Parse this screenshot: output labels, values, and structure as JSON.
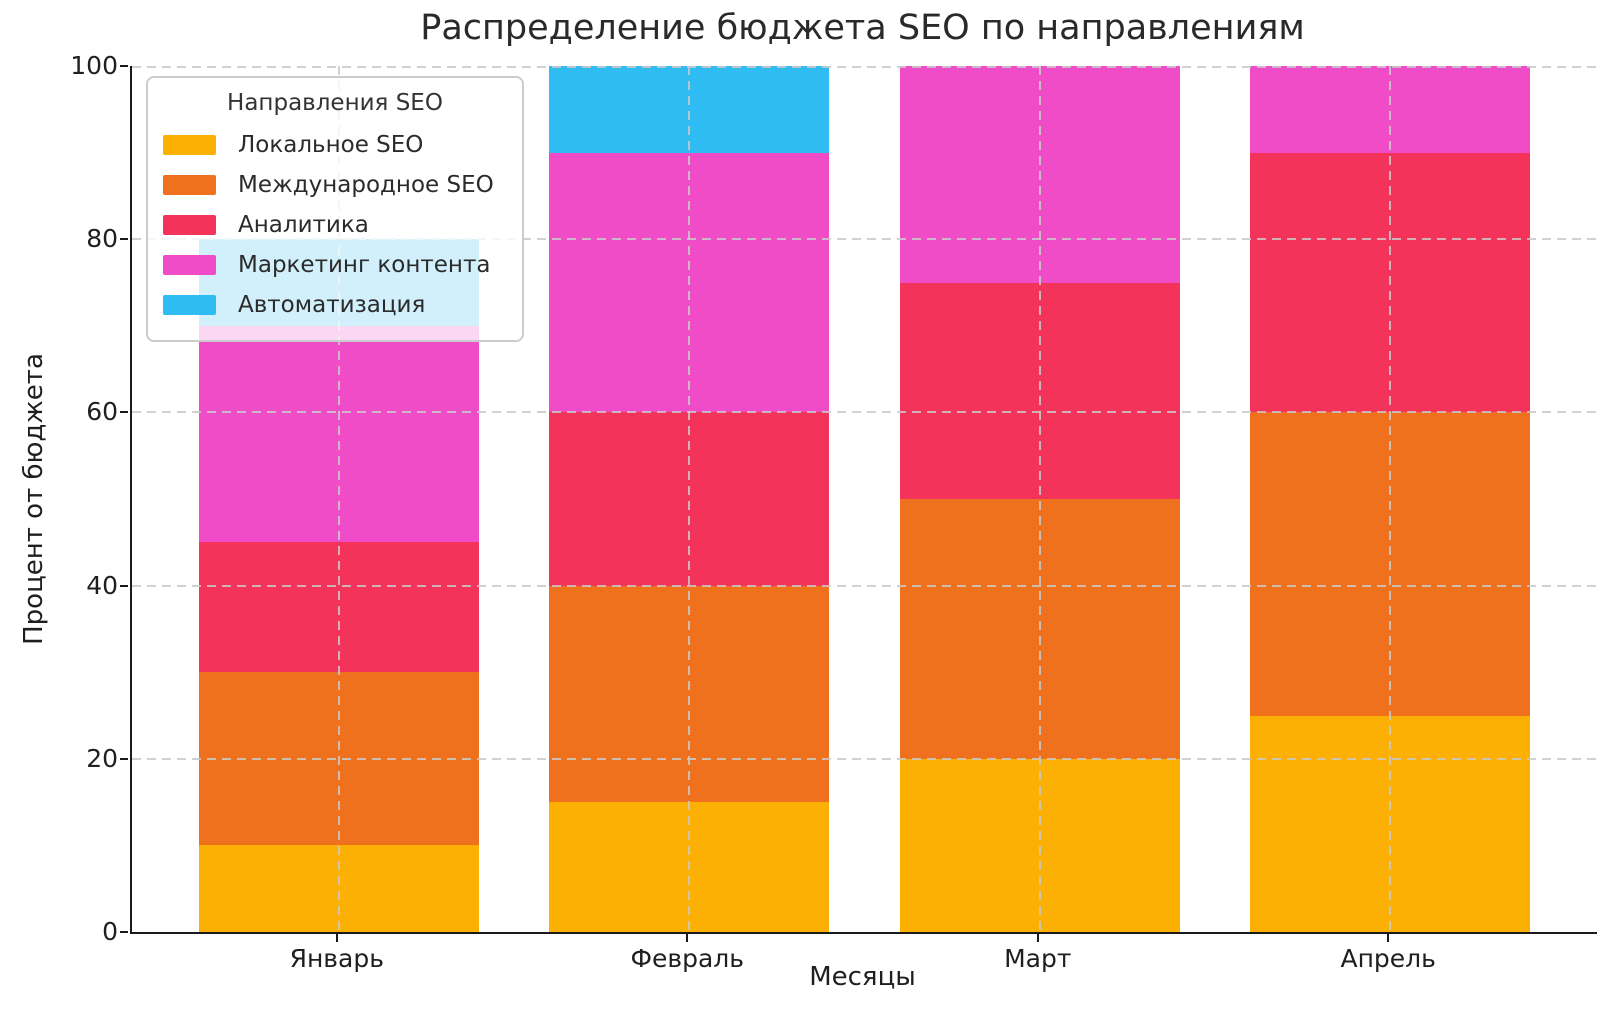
{
  "chart_data": {
    "type": "bar",
    "stacked": true,
    "title": "Распределение бюджета SEO по направлениям",
    "xlabel": "Месяцы",
    "ylabel": "Процент от бюджета",
    "categories": [
      "Январь",
      "Февраль",
      "Март",
      "Апрель"
    ],
    "series": [
      {
        "name": "Локальное SEO",
        "color": "#FCB004",
        "values": [
          10,
          15,
          20,
          25
        ]
      },
      {
        "name": "Международное SEO",
        "color": "#F0711D",
        "values": [
          20,
          25,
          30,
          35
        ]
      },
      {
        "name": "Аналитика",
        "color": "#F4335B",
        "values": [
          15,
          20,
          25,
          30
        ]
      },
      {
        "name": "Маркетинг контента",
        "color": "#F04CC8",
        "values": [
          25,
          30,
          25,
          10
        ]
      },
      {
        "name": "Автоматизация",
        "color": "#2FBCF2",
        "values": [
          10,
          10,
          0,
          0
        ]
      }
    ],
    "legend": {
      "title": "Направления SEO",
      "position": "upper left"
    },
    "ylim": [
      0,
      100
    ],
    "yticks": [
      0,
      20,
      40,
      60,
      80,
      100
    ],
    "grid": {
      "style": "dashed",
      "color": "#c9c9c9",
      "above_bars": true
    },
    "spines": [
      "left",
      "bottom"
    ]
  }
}
